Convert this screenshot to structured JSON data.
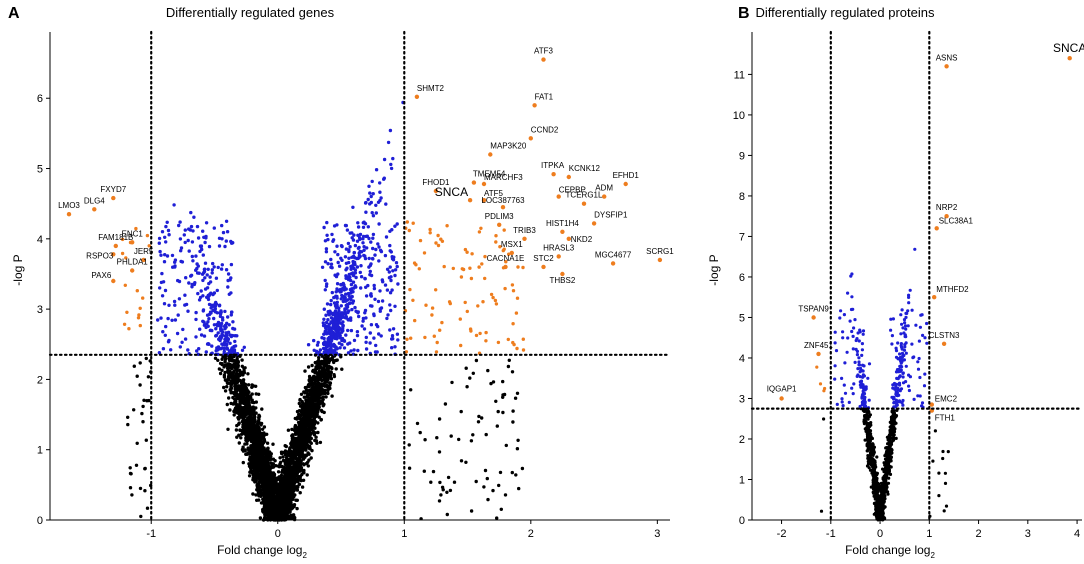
{
  "colors": {
    "nonsig": "#000000",
    "sig_inner": "#1f1fd6",
    "sig_outer": "#ee7d1e",
    "text": "#000000"
  },
  "chart_data": [
    {
      "panel": "A",
      "type": "scatter",
      "title": "Differentially regulated genes",
      "xlabel": "Fold change log",
      "xlabel_subscript": "2",
      "ylabel": "-log P",
      "xlim": [
        -1.8,
        3.1
      ],
      "ylim": [
        0,
        6.8
      ],
      "xticks": [
        -1,
        0,
        1,
        2,
        3
      ],
      "xtick_labels": [
        "-1",
        "0",
        "1",
        "2",
        "3"
      ],
      "yticks": [
        0,
        1,
        2,
        3,
        4,
        5,
        6
      ],
      "ytick_labels": [
        "0",
        "1",
        "2",
        "3",
        "4",
        "5",
        "6"
      ],
      "thresholds": {
        "fold_change": [
          -1,
          1
        ],
        "neg_log_p": 2.35
      },
      "labeled_points": [
        {
          "label": "ATF3",
          "x": 2.1,
          "y": 6.55,
          "dx": 0,
          "dy": -6,
          "anchor": "middle"
        },
        {
          "label": "SHMT2",
          "x": 1.1,
          "y": 6.02,
          "dx": 0,
          "dy": -6,
          "anchor": "start"
        },
        {
          "label": "FAT1",
          "x": 2.03,
          "y": 5.9,
          "dx": 0,
          "dy": -6,
          "anchor": "start"
        },
        {
          "label": "CCND2",
          "x": 2.0,
          "y": 5.43,
          "dx": 0,
          "dy": -6,
          "anchor": "start"
        },
        {
          "label": "MAP3K20",
          "x": 1.68,
          "y": 5.2,
          "dx": 0,
          "dy": -6,
          "anchor": "start"
        },
        {
          "label": "ITPKA",
          "x": 2.18,
          "y": 4.92,
          "dx": -1,
          "dy": -6,
          "anchor": "middle"
        },
        {
          "label": "KCNK12",
          "x": 2.3,
          "y": 4.88,
          "dx": 0,
          "dy": -6,
          "anchor": "start"
        },
        {
          "label": "TMEM54",
          "x": 1.55,
          "y": 4.8,
          "dx": -1,
          "dy": -6,
          "anchor": "start"
        },
        {
          "label": "MARCHF3",
          "x": 1.63,
          "y": 4.78,
          "dx": 0,
          "dy": -4,
          "anchor": "start"
        },
        {
          "label": "FHOD1",
          "x": 1.25,
          "y": 4.68,
          "dx": 0,
          "dy": -6,
          "anchor": "middle"
        },
        {
          "label": "CEPBP",
          "x": 2.22,
          "y": 4.6,
          "dx": 0,
          "dy": -4,
          "anchor": "start"
        },
        {
          "label": "ATF5",
          "x": 1.63,
          "y": 4.55,
          "dx": 0,
          "dy": -4,
          "anchor": "start"
        },
        {
          "label": "EFHD1",
          "x": 2.75,
          "y": 4.78,
          "dx": 0,
          "dy": -6,
          "anchor": "middle"
        },
        {
          "label": "SNCA",
          "x": 1.52,
          "y": 4.55,
          "dx": -2,
          "dy": -4,
          "anchor": "end",
          "big": true
        },
        {
          "label": "LOC387763",
          "x": 1.78,
          "y": 4.45,
          "dx": 0,
          "dy": -4,
          "anchor": "middle"
        },
        {
          "label": "ADM",
          "x": 2.58,
          "y": 4.6,
          "dx": 0,
          "dy": -6,
          "anchor": "middle"
        },
        {
          "label": "TCERG1L",
          "x": 2.42,
          "y": 4.5,
          "dx": 0,
          "dy": -6,
          "anchor": "middle"
        },
        {
          "label": "DYSFIP1",
          "x": 2.5,
          "y": 4.22,
          "dx": 0,
          "dy": -6,
          "anchor": "start"
        },
        {
          "label": "PDLIM3",
          "x": 1.75,
          "y": 4.2,
          "dx": 0,
          "dy": -6,
          "anchor": "middle"
        },
        {
          "label": "HIST1H4",
          "x": 2.25,
          "y": 4.1,
          "dx": 0,
          "dy": -6,
          "anchor": "middle"
        },
        {
          "label": "TRIB3",
          "x": 1.95,
          "y": 4.0,
          "dx": 0,
          "dy": -6,
          "anchor": "middle"
        },
        {
          "label": "NKD2",
          "x": 2.3,
          "y": 4.0,
          "dx": 2,
          "dy": 3,
          "anchor": "start"
        },
        {
          "label": "MSX1",
          "x": 1.85,
          "y": 3.8,
          "dx": 0,
          "dy": -6,
          "anchor": "middle"
        },
        {
          "label": "HRASL3",
          "x": 2.22,
          "y": 3.75,
          "dx": 0,
          "dy": -6,
          "anchor": "middle"
        },
        {
          "label": "MGC4677",
          "x": 2.65,
          "y": 3.65,
          "dx": 0,
          "dy": -6,
          "anchor": "middle"
        },
        {
          "label": "SCRG1",
          "x": 3.02,
          "y": 3.7,
          "dx": 0,
          "dy": -6,
          "anchor": "middle"
        },
        {
          "label": "CACNA1E",
          "x": 1.8,
          "y": 3.6,
          "dx": 0,
          "dy": -6,
          "anchor": "middle"
        },
        {
          "label": "STC2",
          "x": 2.1,
          "y": 3.6,
          "dx": 0,
          "dy": -6,
          "anchor": "middle"
        },
        {
          "label": "THBS2",
          "x": 2.25,
          "y": 3.5,
          "dx": 0,
          "dy": 9,
          "anchor": "middle"
        },
        {
          "label": "LMO3",
          "x": -1.65,
          "y": 4.35,
          "dx": 0,
          "dy": -6,
          "anchor": "middle"
        },
        {
          "label": "DLG4",
          "x": -1.45,
          "y": 4.42,
          "dx": 0,
          "dy": -6,
          "anchor": "middle"
        },
        {
          "label": "FXYD7",
          "x": -1.3,
          "y": 4.58,
          "dx": 0,
          "dy": -6,
          "anchor": "middle"
        },
        {
          "label": "FAM181B",
          "x": -1.28,
          "y": 3.9,
          "dx": 0,
          "dy": -6,
          "anchor": "middle"
        },
        {
          "label": "ENC1",
          "x": -1.15,
          "y": 3.95,
          "dx": 0,
          "dy": -6,
          "anchor": "middle"
        },
        {
          "label": "RSPO3",
          "x": -1.3,
          "y": 3.78,
          "dx": 0,
          "dy": 4,
          "anchor": "end"
        },
        {
          "label": "JER5",
          "x": -1.06,
          "y": 3.7,
          "dx": 0,
          "dy": -6,
          "anchor": "middle"
        },
        {
          "label": "PHLDA1",
          "x": -1.15,
          "y": 3.55,
          "dx": 0,
          "dy": -6,
          "anchor": "middle"
        },
        {
          "label": "PAX6",
          "x": -1.3,
          "y": 3.4,
          "dx": -2,
          "dy": -3,
          "anchor": "end"
        }
      ]
    },
    {
      "panel": "B",
      "type": "scatter",
      "title": "Differentially regulated proteins",
      "xlabel": "Fold change log",
      "xlabel_subscript": "2",
      "ylabel": "-log P",
      "xlim": [
        -2.6,
        4.1
      ],
      "ylim": [
        0,
        11.8
      ],
      "xticks": [
        -2,
        -1,
        0,
        1,
        2,
        3,
        4
      ],
      "xtick_labels": [
        "-2",
        "-1",
        "0",
        "1",
        "2",
        "3",
        "4"
      ],
      "yticks": [
        0,
        1,
        2,
        3,
        4,
        5,
        6,
        7,
        8,
        9,
        10,
        11
      ],
      "ytick_labels": [
        "0",
        "1",
        "2",
        "3",
        "4",
        "5",
        "6",
        "7",
        "8",
        "9",
        "10",
        "11"
      ],
      "thresholds": {
        "fold_change": [
          -1,
          1
        ],
        "neg_log_p": 2.75
      },
      "labeled_points": [
        {
          "label": "SNCA",
          "x": 3.85,
          "y": 11.4,
          "dx": 0,
          "dy": -6,
          "anchor": "middle",
          "big": true
        },
        {
          "label": "ASNS",
          "x": 1.35,
          "y": 11.2,
          "dx": 0,
          "dy": -6,
          "anchor": "middle"
        },
        {
          "label": "NRP2",
          "x": 1.35,
          "y": 7.5,
          "dx": 0,
          "dy": -6,
          "anchor": "middle"
        },
        {
          "label": "SLC38A1",
          "x": 1.15,
          "y": 7.2,
          "dx": 2,
          "dy": -5,
          "anchor": "start"
        },
        {
          "label": "MTHFD2",
          "x": 1.1,
          "y": 5.5,
          "dx": 2,
          "dy": -5,
          "anchor": "start"
        },
        {
          "label": "TSPAN9",
          "x": -1.35,
          "y": 5.0,
          "dx": 0,
          "dy": -6,
          "anchor": "middle"
        },
        {
          "label": "CLSTN3",
          "x": 1.3,
          "y": 4.35,
          "dx": 0,
          "dy": -6,
          "anchor": "middle"
        },
        {
          "label": "ZNF451",
          "x": -1.25,
          "y": 4.1,
          "dx": 0,
          "dy": -6,
          "anchor": "middle"
        },
        {
          "label": "IQGAP1",
          "x": -2.0,
          "y": 3.0,
          "dx": 0,
          "dy": -7,
          "anchor": "middle"
        },
        {
          "label": "EMC2",
          "x": 1.05,
          "y": 2.85,
          "dx": 3,
          "dy": -3,
          "anchor": "start"
        },
        {
          "label": "FTH1",
          "x": 1.05,
          "y": 2.7,
          "dx": 3,
          "dy": 10,
          "anchor": "start"
        }
      ]
    }
  ]
}
